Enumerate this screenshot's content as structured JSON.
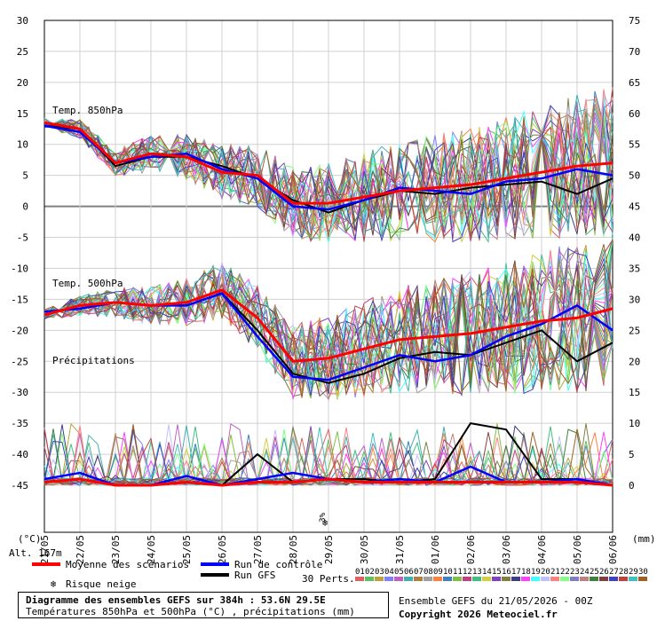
{
  "chart_data": {
    "type": "line",
    "title": "Diagramme des ensembles GEFS sur 384h : 53.6N 29.5E",
    "subtitle": "Températures 850hPa et 500hPa (°C) , précipitations (mm)",
    "left_axis": {
      "label": "(°C)",
      "ticks": [
        30,
        25,
        20,
        15,
        10,
        5,
        0,
        -5,
        -10,
        -15,
        -20,
        -25,
        -30,
        -35,
        -40,
        -45
      ],
      "range": [
        -45,
        30
      ]
    },
    "right_axis": {
      "label": "(mm)",
      "ticks": [
        75,
        70,
        65,
        60,
        55,
        50,
        45,
        40,
        35,
        30,
        25,
        20,
        15,
        10,
        5,
        0
      ],
      "range": [
        0,
        75
      ]
    },
    "x_ticks": [
      "21/05",
      "22/05",
      "23/05",
      "24/05",
      "25/05",
      "26/05",
      "27/05",
      "28/05",
      "29/05",
      "30/05",
      "31/05",
      "01/06",
      "02/06",
      "03/06",
      "04/06",
      "05/06",
      "06/06"
    ],
    "panel_labels": {
      "t850": "Temp. 850hPa",
      "t500": "Temp. 500hPa",
      "precip": "Précipitations"
    },
    "snow_annotation": {
      "date_index": 7.9,
      "text": "3%"
    },
    "altitude": "Alt. 167m",
    "series": [
      {
        "name": "Moyenne des scénarios",
        "color": "#ff0000",
        "t850": [
          13.5,
          12.5,
          7,
          8.5,
          8,
          5.5,
          5,
          0.5,
          0.5,
          1.5,
          2.5,
          3,
          3.5,
          4.5,
          5.5,
          6.5,
          7
        ],
        "t500": [
          -17.5,
          -16,
          -15.5,
          -16,
          -15.5,
          -13.5,
          -18,
          -25,
          -24.5,
          -23,
          -21.5,
          -21,
          -20.5,
          -19.5,
          -18.5,
          -18,
          -16.5
        ],
        "precip": [
          0.5,
          1,
          0,
          0,
          0.5,
          0,
          0.5,
          0.5,
          1,
          0.5,
          0.5,
          0.5,
          0.5,
          0.5,
          0.5,
          0.5,
          0
        ]
      },
      {
        "name": "Run de contrôle",
        "color": "#0000ff",
        "t850": [
          13,
          12,
          7,
          8,
          8.5,
          6,
          4.5,
          0,
          -0.5,
          1,
          3,
          2.5,
          2,
          4,
          4.5,
          6,
          5
        ],
        "t500": [
          -17,
          -16.5,
          -15.5,
          -16,
          -16,
          -14,
          -21,
          -27.5,
          -28,
          -26,
          -24,
          -25,
          -24,
          -21,
          -19,
          -16,
          -20
        ],
        "precip": [
          1,
          2,
          0,
          0,
          1.5,
          0,
          1,
          2,
          1,
          0.5,
          1,
          0.5,
          3,
          0.5,
          0.5,
          1,
          0
        ]
      },
      {
        "name": "Run GFS",
        "color": "#000000",
        "t850": [
          13,
          12.5,
          6.5,
          8,
          8,
          6.5,
          4.5,
          1,
          -1,
          1,
          2.5,
          2,
          3,
          3.5,
          4,
          2,
          4.5
        ],
        "t500": [
          -17,
          -16.5,
          -15.5,
          -16,
          -16,
          -14,
          -20,
          -27,
          -28.5,
          -27,
          -24.5,
          -23.5,
          -24,
          -22,
          -20,
          -25,
          -22
        ],
        "precip": [
          0.5,
          1,
          0,
          0,
          0.5,
          0,
          5,
          0.5,
          1,
          1,
          0.5,
          1,
          10,
          9,
          1,
          1,
          0
        ]
      }
    ],
    "legend": {
      "mean": "Moyenne des scénarios",
      "control": "Run de contrôle",
      "gfs": "Run GFS",
      "snow": "Risque neige",
      "perts": "30 Perts.",
      "pert_numbers": [
        "01",
        "02",
        "03",
        "04",
        "05",
        "06",
        "07",
        "08",
        "09",
        "10",
        "11",
        "12",
        "13",
        "14",
        "15",
        "16",
        "17",
        "18",
        "19",
        "20",
        "21",
        "22",
        "23",
        "24",
        "25",
        "26",
        "27",
        "28",
        "29",
        "30"
      ],
      "pert_colors": [
        "#e06060",
        "#60c060",
        "#c0a040",
        "#8080ff",
        "#c060c0",
        "#40b0b0",
        "#b08040",
        "#a0a0a0",
        "#ff8040",
        "#4080c0",
        "#80c040",
        "#c04080",
        "#40c080",
        "#d0d040",
        "#8040c0",
        "#808040",
        "#404080",
        "#ff40ff",
        "#40ffff",
        "#c0c0ff",
        "#ff8080",
        "#80ff80",
        "#8080c0",
        "#c08080",
        "#408040",
        "#804040",
        "#4040c0",
        "#c04040",
        "#40c0c0",
        "#a06020"
      ]
    },
    "grid": true
  },
  "footer": {
    "title": "Diagramme des ensembles GEFS sur 384h : 53.6N 29.5E",
    "subtitle": "Températures 850hPa et 500hPa (°C) , précipitations (mm)",
    "run": "Ensemble GEFS du 21/05/2026 - 00Z",
    "copyright": "Copyright 2026 Meteociel.fr"
  }
}
